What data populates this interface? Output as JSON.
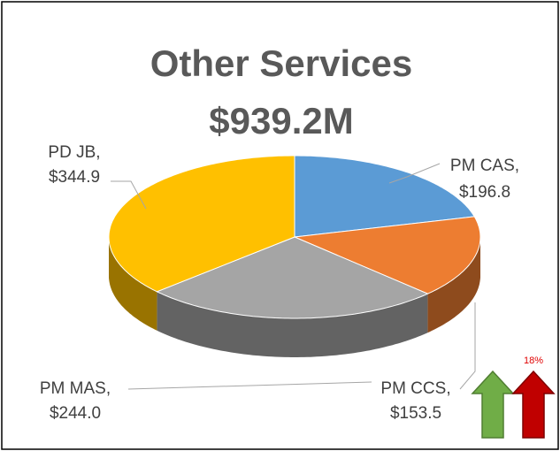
{
  "chart_data": {
    "type": "pie3d",
    "title": "Other Services",
    "subtitle": "$939.2M",
    "categories": [
      "PM CAS",
      "PM CCS",
      "PM MAS",
      "PD JB"
    ],
    "values": [
      196.8,
      153.5,
      244.0,
      344.9
    ],
    "value_labels": [
      "$196.8",
      "$153.5",
      "$244.0",
      "$344.9"
    ],
    "label_separator": ",",
    "colors": [
      "#5b9bd5",
      "#ed7d31",
      "#a5a5a5",
      "#ffc000"
    ],
    "annotation": "18%"
  }
}
